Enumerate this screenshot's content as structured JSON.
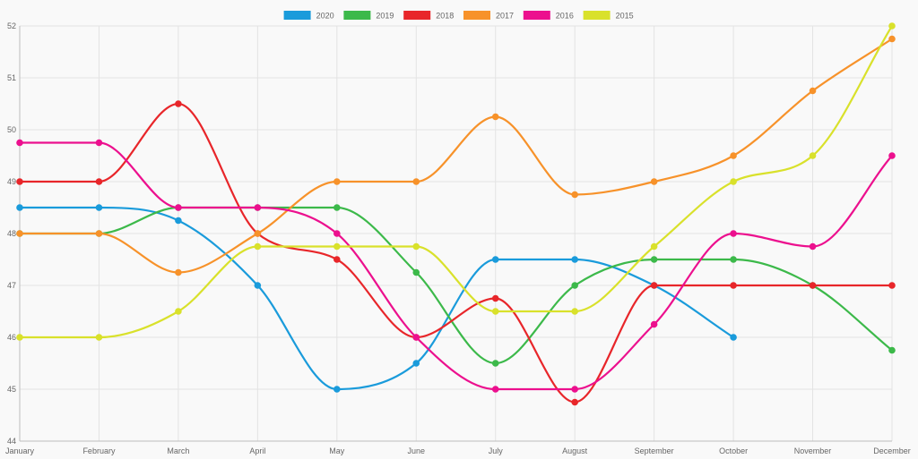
{
  "chart_data": {
    "type": "line",
    "title": "",
    "xlabel": "",
    "ylabel": "",
    "categories": [
      "January",
      "February",
      "March",
      "April",
      "May",
      "June",
      "July",
      "August",
      "September",
      "October",
      "November",
      "December"
    ],
    "ylim": [
      44,
      52
    ],
    "yticks": [
      "44",
      "45",
      "46",
      "47",
      "48",
      "49",
      "50",
      "51",
      "52"
    ],
    "grid": true,
    "legend_position": "top",
    "series": [
      {
        "name": "2020",
        "color": "#1a9bdb",
        "values": [
          48.5,
          48.5,
          48.25,
          47,
          45,
          45.5,
          47.5,
          47.5,
          47,
          46,
          null,
          null
        ]
      },
      {
        "name": "2019",
        "color": "#3cb94a",
        "values": [
          48,
          48,
          48.5,
          48.5,
          48.5,
          47.25,
          45.5,
          47,
          47.5,
          47.5,
          47,
          45.75
        ]
      },
      {
        "name": "2018",
        "color": "#e8262a",
        "values": [
          49,
          49,
          50.5,
          48,
          47.5,
          46,
          46.75,
          44.75,
          47,
          47,
          47,
          47
        ]
      },
      {
        "name": "2017",
        "color": "#f7922a",
        "values": [
          48,
          48,
          47.25,
          48,
          49,
          49,
          50.25,
          48.75,
          49,
          49.5,
          50.75,
          51.75
        ]
      },
      {
        "name": "2016",
        "color": "#ec108e",
        "values": [
          49.75,
          49.75,
          48.5,
          48.5,
          48,
          46,
          45,
          45,
          46.25,
          48,
          47.75,
          49.5
        ]
      },
      {
        "name": "2015",
        "color": "#d9e12b",
        "values": [
          46,
          46,
          46.5,
          47.75,
          47.75,
          47.75,
          46.5,
          46.5,
          47.75,
          49,
          49.5,
          52
        ]
      }
    ]
  }
}
